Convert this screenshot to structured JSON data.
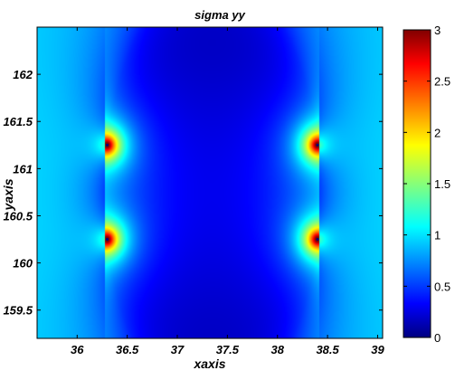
{
  "chart_data": {
    "type": "heatmap",
    "title": "sigma yy",
    "xlabel": "xaxis",
    "ylabel": "yaxis",
    "xlim": [
      35.6,
      39.05
    ],
    "ylim": [
      159.2,
      162.5
    ],
    "x_ticks": [
      "36",
      "36.5",
      "37",
      "37.5",
      "38",
      "38.5",
      "39"
    ],
    "x_tick_values": [
      36,
      36.5,
      37,
      37.5,
      38,
      38.5,
      39
    ],
    "y_ticks": [
      "159.5",
      "160",
      "160.5",
      "161",
      "161.5",
      "162"
    ],
    "y_tick_values": [
      159.5,
      160,
      160.5,
      161,
      161.5,
      162
    ],
    "colorbar": {
      "range": [
        0,
        3
      ],
      "ticks": [
        "0",
        "0.5",
        "1",
        "1.5",
        "2",
        "2.5",
        "3"
      ],
      "tick_values": [
        0,
        0.5,
        1,
        1.5,
        2,
        2.5,
        3
      ],
      "colormap": "jet"
    },
    "stress_concentrations": [
      {
        "x": 36.3,
        "y": 161.25,
        "value": 3
      },
      {
        "x": 36.3,
        "y": 160.25,
        "value": 3
      },
      {
        "x": 38.4,
        "y": 161.25,
        "value": 3
      },
      {
        "x": 38.4,
        "y": 160.25,
        "value": 3
      }
    ],
    "background_value": 1.0,
    "center_value": 0.1
  }
}
